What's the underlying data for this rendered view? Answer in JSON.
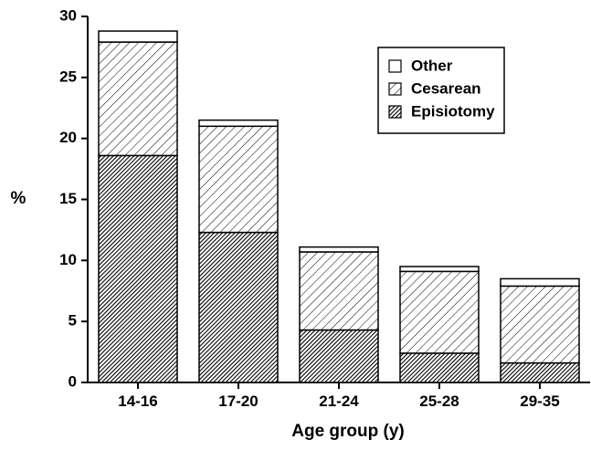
{
  "chart_data": {
    "type": "bar",
    "stacked": true,
    "categories": [
      "14-16",
      "17-20",
      "21-24",
      "25-28",
      "29-35"
    ],
    "series": [
      {
        "name": "Episiotomy",
        "values": [
          18.6,
          12.3,
          4.3,
          2.4,
          1.6
        ],
        "pattern": "dense-hatch"
      },
      {
        "name": "Cesarean",
        "values": [
          9.3,
          8.7,
          6.4,
          6.7,
          6.3
        ],
        "pattern": "light-hatch"
      },
      {
        "name": "Other",
        "values": [
          0.9,
          0.5,
          0.4,
          0.4,
          0.6
        ],
        "pattern": "solid-white"
      }
    ],
    "title": "",
    "xlabel": "Age group (y)",
    "ylabel": "%",
    "ylim": [
      0,
      30
    ],
    "yticks": [
      "0",
      "5",
      "10",
      "15",
      "20",
      "25",
      "30"
    ],
    "grid": false,
    "legend_position": "top-right",
    "legend_order": [
      "Other",
      "Cesarean",
      "Episiotomy"
    ],
    "colors": {
      "stroke": "#000000",
      "fill_white": "#ffffff"
    }
  }
}
